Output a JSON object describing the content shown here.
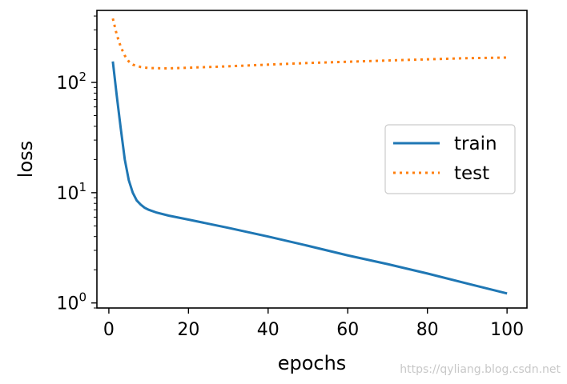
{
  "chart_data": {
    "type": "line",
    "xlabel": "epochs",
    "ylabel": "loss",
    "xlim": [
      -3,
      105
    ],
    "ylim": [
      0.9,
      450
    ],
    "yscale": "log",
    "x_ticks": [
      0,
      20,
      40,
      60,
      80,
      100
    ],
    "y_ticks": [
      {
        "value": 1,
        "base": "10",
        "exp": "0"
      },
      {
        "value": 10,
        "base": "10",
        "exp": "1"
      },
      {
        "value": 100,
        "base": "10",
        "exp": "2"
      }
    ],
    "grid": false,
    "legend_position": "center-right",
    "series": [
      {
        "name": "train",
        "color": "#1f77b4",
        "style": "solid",
        "x": [
          1,
          2,
          3,
          4,
          5,
          6,
          7,
          8,
          9,
          10,
          12,
          15,
          20,
          30,
          40,
          50,
          60,
          70,
          80,
          90,
          100
        ],
        "y": [
          155,
          75,
          38,
          20,
          13,
          10,
          8.5,
          7.8,
          7.3,
          7.0,
          6.6,
          6.2,
          5.7,
          4.8,
          4.0,
          3.3,
          2.7,
          2.25,
          1.85,
          1.5,
          1.22
        ]
      },
      {
        "name": "test",
        "color": "#ff7f0e",
        "style": "dotted",
        "x": [
          1,
          2,
          3,
          4,
          5,
          6,
          8,
          10,
          15,
          20,
          30,
          40,
          50,
          60,
          70,
          80,
          90,
          100
        ],
        "y": [
          380,
          270,
          210,
          175,
          155,
          145,
          138,
          135,
          134,
          136,
          140,
          145,
          150,
          154,
          158,
          162,
          166,
          168
        ]
      }
    ]
  },
  "watermark": "https://qyliang.blog.csdn.net"
}
